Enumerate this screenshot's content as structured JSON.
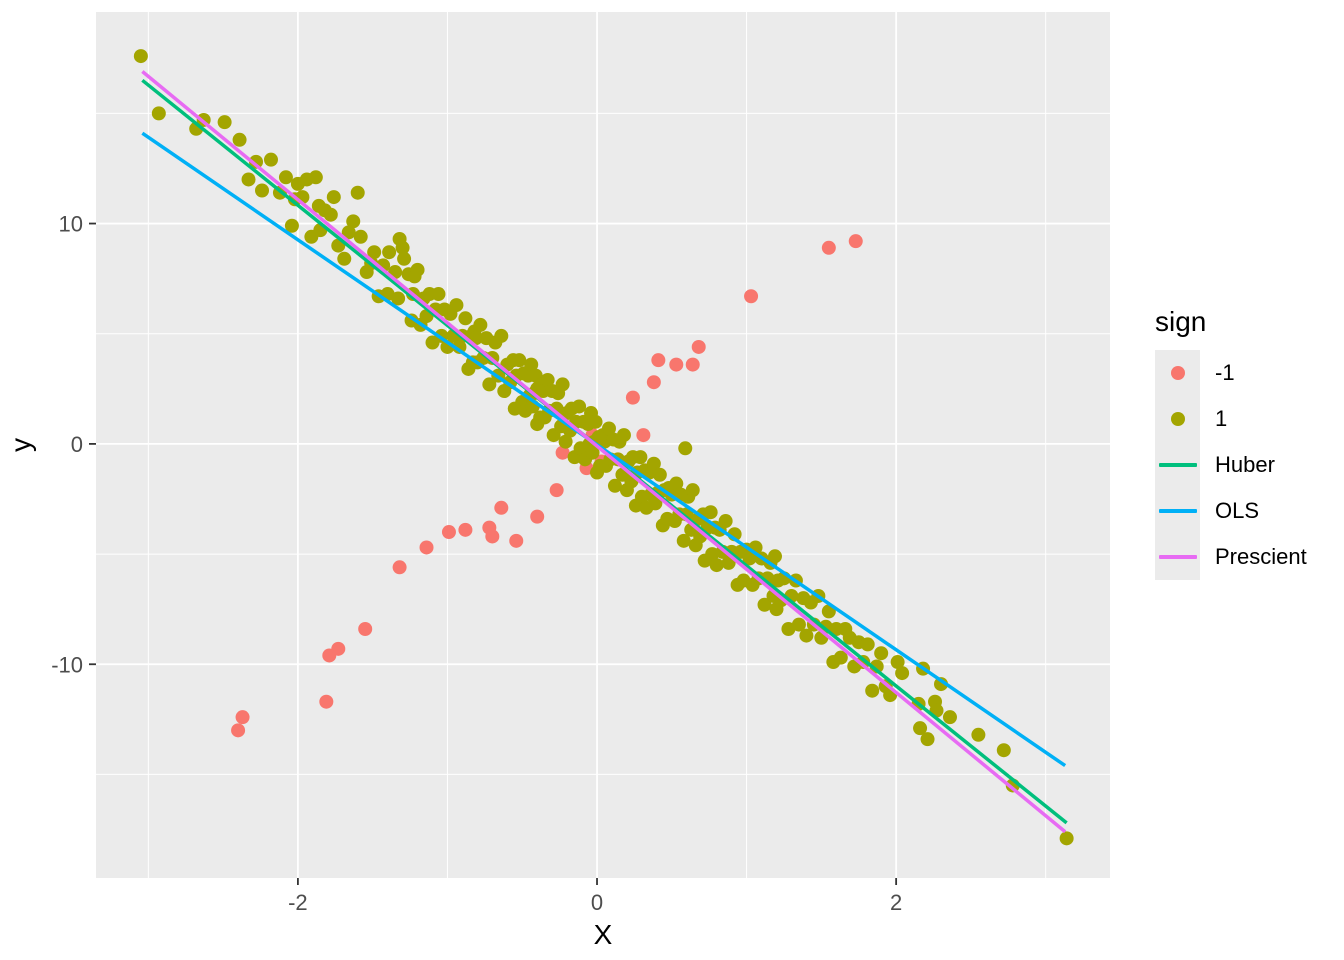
{
  "panel": {
    "background": "#EBEBEB",
    "gridline_color": "#FFFFFF",
    "tick_color": "#333333",
    "tick_label_color": "#4D4D4D"
  },
  "axes": {
    "x": {
      "label": "X",
      "major_ticks": [
        -2,
        0,
        2
      ],
      "major_labels": [
        "-2",
        "0",
        "2"
      ],
      "minor_ticks": [
        -3,
        -1,
        1,
        3
      ]
    },
    "y": {
      "label": "y",
      "major_ticks": [
        -10,
        0,
        10
      ],
      "major_labels": [
        "-10",
        "0",
        "10"
      ],
      "minor_ticks": [
        -15,
        -5,
        5,
        15
      ]
    }
  },
  "legend": {
    "title": "sign",
    "items": [
      {
        "label": "-1",
        "type": "point",
        "color": "#F8766D"
      },
      {
        "label": "1",
        "type": "point",
        "color": "#A3A500"
      },
      {
        "label": "Huber",
        "type": "line",
        "color": "#00BF7D"
      },
      {
        "label": "OLS",
        "type": "line",
        "color": "#00B0F6"
      },
      {
        "label": "Prescient",
        "type": "line",
        "color": "#E76BF3"
      }
    ]
  },
  "chart_data": {
    "type": "scatter",
    "title": "",
    "xlabel": "X",
    "ylabel": "y",
    "xlim": [
      -3.35,
      3.43
    ],
    "ylim": [
      -19.7,
      19.6
    ],
    "grid": true,
    "legend_position": "right",
    "series": [
      {
        "name": "-1",
        "type": "points",
        "color": "#F8766D",
        "points": [
          [
            -2.4,
            -13.0
          ],
          [
            -2.37,
            -12.4
          ],
          [
            -1.81,
            -11.7
          ],
          [
            -1.79,
            -9.6
          ],
          [
            -1.73,
            -9.3
          ],
          [
            -1.55,
            -8.4
          ],
          [
            -1.32,
            -5.6
          ],
          [
            -1.14,
            -4.7
          ],
          [
            -0.99,
            -4.0
          ],
          [
            -0.88,
            -3.9
          ],
          [
            -0.72,
            -3.8
          ],
          [
            -0.7,
            -4.2
          ],
          [
            -0.64,
            -2.9
          ],
          [
            -0.54,
            -4.4
          ],
          [
            -0.4,
            -3.3
          ],
          [
            -0.27,
            -2.1
          ],
          [
            -0.23,
            -0.4
          ],
          [
            -0.07,
            -1.1
          ],
          [
            -0.03,
            0.4
          ],
          [
            0.03,
            -0.8
          ],
          [
            0.24,
            2.1
          ],
          [
            0.31,
            0.4
          ],
          [
            0.38,
            2.8
          ],
          [
            0.41,
            3.8
          ],
          [
            0.53,
            3.6
          ],
          [
            0.64,
            3.6
          ],
          [
            0.68,
            4.4
          ],
          [
            1.03,
            6.7
          ],
          [
            1.55,
            8.9
          ],
          [
            1.73,
            9.2
          ]
        ]
      },
      {
        "name": "1",
        "type": "points",
        "color": "#A3A500",
        "points": [
          [
            -3.05,
            17.6
          ],
          [
            -2.93,
            15.0
          ],
          [
            -2.68,
            14.3
          ],
          [
            -2.63,
            14.7
          ],
          [
            -2.49,
            14.6
          ],
          [
            -2.39,
            13.8
          ],
          [
            -2.33,
            12.0
          ],
          [
            -2.28,
            12.8
          ],
          [
            -2.24,
            11.5
          ],
          [
            -2.18,
            12.9
          ],
          [
            -2.12,
            11.4
          ],
          [
            -2.08,
            12.1
          ],
          [
            -2.04,
            9.9
          ],
          [
            -2.02,
            11.1
          ],
          [
            -2.0,
            11.8
          ],
          [
            -1.97,
            11.2
          ],
          [
            -1.94,
            12.0
          ],
          [
            -1.91,
            9.4
          ],
          [
            -1.88,
            12.1
          ],
          [
            -1.86,
            10.8
          ],
          [
            -1.85,
            9.7
          ],
          [
            -1.82,
            10.6
          ],
          [
            -1.78,
            10.4
          ],
          [
            -1.76,
            11.2
          ],
          [
            -1.73,
            9.0
          ],
          [
            -1.69,
            8.4
          ],
          [
            -1.66,
            9.6
          ],
          [
            -1.63,
            10.1
          ],
          [
            -1.6,
            11.4
          ],
          [
            -1.58,
            9.4
          ],
          [
            -1.54,
            7.8
          ],
          [
            -1.51,
            8.2
          ],
          [
            -1.49,
            8.7
          ],
          [
            -1.46,
            6.7
          ],
          [
            -1.43,
            8.1
          ],
          [
            -1.4,
            6.8
          ],
          [
            -1.39,
            8.7
          ],
          [
            -1.35,
            7.8
          ],
          [
            -1.33,
            6.6
          ],
          [
            -1.32,
            9.3
          ],
          [
            -1.3,
            8.9
          ],
          [
            -1.29,
            8.4
          ],
          [
            -1.26,
            7.7
          ],
          [
            -1.24,
            5.6
          ],
          [
            -1.23,
            6.8
          ],
          [
            -1.22,
            7.6
          ],
          [
            -1.2,
            7.9
          ],
          [
            -1.18,
            5.4
          ],
          [
            -1.16,
            6.6
          ],
          [
            -1.14,
            5.8
          ],
          [
            -1.12,
            6.8
          ],
          [
            -1.1,
            4.6
          ],
          [
            -1.08,
            6.1
          ],
          [
            -1.06,
            6.8
          ],
          [
            -1.04,
            4.9
          ],
          [
            -1.02,
            6.1
          ],
          [
            -1.0,
            4.4
          ],
          [
            -0.98,
            5.9
          ],
          [
            -0.96,
            4.9
          ],
          [
            -0.94,
            6.3
          ],
          [
            -0.92,
            4.4
          ],
          [
            -0.9,
            4.9
          ],
          [
            -0.88,
            5.7
          ],
          [
            -0.86,
            3.4
          ],
          [
            -0.84,
            4.9
          ],
          [
            -0.83,
            3.7
          ],
          [
            -0.82,
            5.1
          ],
          [
            -0.81,
            4.8
          ],
          [
            -0.8,
            3.7
          ],
          [
            -0.78,
            5.4
          ],
          [
            -0.76,
            3.9
          ],
          [
            -0.74,
            4.8
          ],
          [
            -0.72,
            2.7
          ],
          [
            -0.7,
            3.9
          ],
          [
            -0.68,
            4.6
          ],
          [
            -0.66,
            3.1
          ],
          [
            -0.64,
            4.9
          ],
          [
            -0.62,
            2.4
          ],
          [
            -0.6,
            3.6
          ],
          [
            -0.58,
            2.8
          ],
          [
            -0.56,
            3.8
          ],
          [
            -0.55,
            1.6
          ],
          [
            -0.54,
            3.1
          ],
          [
            -0.52,
            3.8
          ],
          [
            -0.5,
            1.9
          ],
          [
            -0.49,
            3.2
          ],
          [
            -0.48,
            1.5
          ],
          [
            -0.46,
            3.1
          ],
          [
            -0.45,
            2.2
          ],
          [
            -0.44,
            3.6
          ],
          [
            -0.43,
            1.7
          ],
          [
            -0.42,
            2.3
          ],
          [
            -0.41,
            3.1
          ],
          [
            -0.4,
            0.9
          ],
          [
            -0.4,
            2.5
          ],
          [
            -0.38,
            1.2
          ],
          [
            -0.37,
            2.7
          ],
          [
            -0.36,
            2.4
          ],
          [
            -0.35,
            1.2
          ],
          [
            -0.33,
            2.9
          ],
          [
            -0.32,
            1.5
          ],
          [
            -0.3,
            2.4
          ],
          [
            -0.29,
            0.4
          ],
          [
            -0.27,
            1.6
          ],
          [
            -0.26,
            2.3
          ],
          [
            -0.24,
            0.8
          ],
          [
            -0.23,
            2.7
          ],
          [
            -0.21,
            0.1
          ],
          [
            -0.2,
            1.4
          ],
          [
            -0.18,
            0.6
          ],
          [
            -0.17,
            1.6
          ],
          [
            -0.15,
            -0.6
          ],
          [
            -0.14,
            1.0
          ],
          [
            -0.12,
            1.7
          ],
          [
            -0.11,
            -0.2
          ],
          [
            -0.09,
            1.0
          ],
          [
            -0.08,
            -0.7
          ],
          [
            -0.06,
            0.9
          ],
          [
            -0.05,
            0.0
          ],
          [
            -0.04,
            1.4
          ],
          [
            -0.03,
            -0.4
          ],
          [
            -0.02,
            0.1
          ],
          [
            -0.01,
            1.0
          ],
          [
            0.0,
            -1.3
          ],
          [
            0.01,
            0.3
          ],
          [
            0.02,
            -1.0
          ],
          [
            0.04,
            0.4
          ],
          [
            0.05,
            0.1
          ],
          [
            0.06,
            -1.0
          ],
          [
            0.08,
            0.7
          ],
          [
            0.09,
            -0.7
          ],
          [
            0.11,
            0.2
          ],
          [
            0.12,
            -1.9
          ],
          [
            0.14,
            -0.7
          ],
          [
            0.15,
            0.1
          ],
          [
            0.17,
            -1.4
          ],
          [
            0.18,
            0.4
          ],
          [
            0.2,
            -2.1
          ],
          [
            0.21,
            -0.8
          ],
          [
            0.23,
            -1.7
          ],
          [
            0.24,
            -0.6
          ],
          [
            0.26,
            -2.8
          ],
          [
            0.27,
            -1.3
          ],
          [
            0.29,
            -0.6
          ],
          [
            0.3,
            -2.4
          ],
          [
            0.32,
            -1.2
          ],
          [
            0.33,
            -2.9
          ],
          [
            0.35,
            -1.3
          ],
          [
            0.36,
            -2.3
          ],
          [
            0.38,
            -0.9
          ],
          [
            0.39,
            -2.7
          ],
          [
            0.41,
            -2.2
          ],
          [
            0.42,
            -1.4
          ],
          [
            0.44,
            -3.7
          ],
          [
            0.45,
            -2.1
          ],
          [
            0.47,
            -3.4
          ],
          [
            0.48,
            -2.0
          ],
          [
            0.5,
            -2.3
          ],
          [
            0.52,
            -3.5
          ],
          [
            0.53,
            -1.8
          ],
          [
            0.55,
            -3.2
          ],
          [
            0.56,
            -2.3
          ],
          [
            0.58,
            -4.4
          ],
          [
            0.59,
            -0.2
          ],
          [
            0.6,
            -3.2
          ],
          [
            0.61,
            -2.4
          ],
          [
            0.63,
            -3.9
          ],
          [
            0.64,
            -2.1
          ],
          [
            0.66,
            -4.6
          ],
          [
            0.68,
            -3.4
          ],
          [
            0.69,
            -4.2
          ],
          [
            0.71,
            -3.2
          ],
          [
            0.72,
            -5.3
          ],
          [
            0.74,
            -3.8
          ],
          [
            0.76,
            -3.1
          ],
          [
            0.77,
            -5.0
          ],
          [
            0.79,
            -3.8
          ],
          [
            0.8,
            -5.5
          ],
          [
            0.82,
            -3.9
          ],
          [
            0.84,
            -4.9
          ],
          [
            0.86,
            -3.5
          ],
          [
            0.88,
            -5.4
          ],
          [
            0.9,
            -4.9
          ],
          [
            0.92,
            -4.1
          ],
          [
            0.94,
            -6.4
          ],
          [
            0.96,
            -4.9
          ],
          [
            0.98,
            -6.2
          ],
          [
            1.0,
            -4.8
          ],
          [
            1.02,
            -5.2
          ],
          [
            1.04,
            -6.4
          ],
          [
            1.06,
            -4.7
          ],
          [
            1.08,
            -6.1
          ],
          [
            1.1,
            -5.2
          ],
          [
            1.12,
            -7.3
          ],
          [
            1.14,
            -6.1
          ],
          [
            1.16,
            -5.4
          ],
          [
            1.18,
            -6.9
          ],
          [
            1.19,
            -5.1
          ],
          [
            1.2,
            -7.5
          ],
          [
            1.21,
            -6.2
          ],
          [
            1.23,
            -7.1
          ],
          [
            1.25,
            -6.1
          ],
          [
            1.28,
            -8.4
          ],
          [
            1.3,
            -6.9
          ],
          [
            1.33,
            -6.2
          ],
          [
            1.35,
            -8.2
          ],
          [
            1.38,
            -7.0
          ],
          [
            1.4,
            -8.7
          ],
          [
            1.43,
            -7.2
          ],
          [
            1.45,
            -8.2
          ],
          [
            1.48,
            -6.9
          ],
          [
            1.5,
            -8.8
          ],
          [
            1.53,
            -8.3
          ],
          [
            1.55,
            -7.6
          ],
          [
            1.58,
            -9.9
          ],
          [
            1.6,
            -8.4
          ],
          [
            1.63,
            -9.7
          ],
          [
            1.66,
            -8.4
          ],
          [
            1.69,
            -8.8
          ],
          [
            1.72,
            -10.1
          ],
          [
            1.75,
            -9.0
          ],
          [
            1.78,
            -9.9
          ],
          [
            1.81,
            -9.1
          ],
          [
            1.84,
            -11.2
          ],
          [
            1.87,
            -10.1
          ],
          [
            1.9,
            -9.5
          ],
          [
            1.93,
            -11.0
          ],
          [
            1.96,
            -11.4
          ],
          [
            2.01,
            -9.9
          ],
          [
            2.04,
            -10.4
          ],
          [
            2.15,
            -11.8
          ],
          [
            2.16,
            -12.9
          ],
          [
            2.18,
            -10.2
          ],
          [
            2.21,
            -13.4
          ],
          [
            2.26,
            -11.7
          ],
          [
            2.27,
            -12.1
          ],
          [
            2.3,
            -10.9
          ],
          [
            2.36,
            -12.4
          ],
          [
            2.55,
            -13.2
          ],
          [
            2.72,
            -13.9
          ],
          [
            2.78,
            -15.5
          ],
          [
            3.14,
            -17.9
          ]
        ]
      },
      {
        "name": "Huber",
        "type": "line",
        "color": "#00BF7D",
        "slope": -5.45,
        "intercept": -0.05,
        "points": [
          [
            -3.04,
            16.5
          ],
          [
            3.14,
            -17.2
          ]
        ]
      },
      {
        "name": "OLS",
        "type": "line",
        "color": "#00B0F6",
        "slope": -4.65,
        "intercept": 0.0,
        "points": [
          [
            -3.04,
            14.1
          ],
          [
            3.13,
            -14.6
          ]
        ]
      },
      {
        "name": "Prescient",
        "type": "line",
        "color": "#E76BF3",
        "slope": -5.57,
        "intercept": -0.1,
        "points": [
          [
            -3.04,
            16.9
          ],
          [
            3.13,
            -17.6
          ]
        ]
      }
    ]
  }
}
